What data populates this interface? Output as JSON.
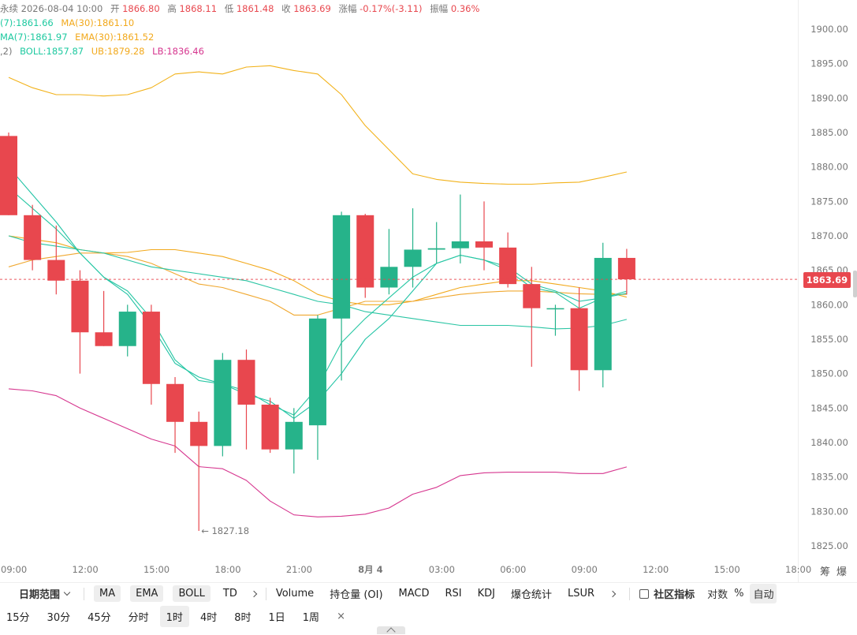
{
  "legend": {
    "row1": {
      "prefix": "永续",
      "datetime": "2026-08-04 10:00",
      "open_label": "开",
      "open": "1866.80",
      "high_label": "高",
      "high": "1868.11",
      "low_label": "低",
      "low": "1861.48",
      "close_label": "收",
      "close": "1863.69",
      "change_label": "涨幅",
      "change": "-0.17%(-3.11)",
      "amp_label": "振幅",
      "amp": "0.36%"
    },
    "row2": {
      "ma7": "(7):1861.66",
      "ma30": "MA(30):1861.10"
    },
    "row3": {
      "ema7": "MA(7):1861.97",
      "ema30": "EMA(30):1861.52"
    },
    "row4": {
      "prefix": ",2)",
      "boll": "BOLL:1857.87",
      "ub": "UB:1879.28",
      "lb": "LB:1836.46"
    }
  },
  "price_tag": "1863.69",
  "side_chips": [
    "筹",
    "爆"
  ],
  "toolbar1": {
    "date_range": "日期范围",
    "main_indicators": [
      "MA",
      "EMA",
      "BOLL"
    ],
    "td": "TD",
    "sub_indicators": [
      "Volume",
      "持仓量 (OI)",
      "MACD",
      "RSI",
      "KDJ",
      "爆仓统计",
      "LSUR"
    ],
    "community": "社区指标",
    "log": "对数",
    "pct": "%",
    "auto": "自动"
  },
  "toolbar2": {
    "timeframes": [
      "15分",
      "30分",
      "45分",
      "分时",
      "1时",
      "4时",
      "8时",
      "1日",
      "1周"
    ],
    "active": "1时",
    "close": "×"
  },
  "colors": {
    "up": "#26b38a",
    "down": "#e8474e",
    "ma7": "#21c3a5",
    "ma30": "#f2a91c",
    "ema7": "#27c7a3",
    "ema30": "#f0a830",
    "boll_mid": "#2bc5a4",
    "boll_ub": "#f2b21a",
    "boll_lb": "#d6368f"
  },
  "chart_data": {
    "type": "candlestick",
    "y_ticks": [
      1900,
      1895,
      1890,
      1885,
      1880,
      1875,
      1870,
      1865,
      1860,
      1855,
      1850,
      1845,
      1840,
      1835,
      1830,
      1825
    ],
    "x_ticks": [
      {
        "i": 0.22,
        "label": "09:00"
      },
      {
        "i": 3.22,
        "label": "12:00"
      },
      {
        "i": 6.22,
        "label": "15:00"
      },
      {
        "i": 9.22,
        "label": "18:00"
      },
      {
        "i": 12.22,
        "label": "21:00"
      },
      {
        "i": 15.22,
        "label": "8月 4"
      },
      {
        "i": 18.22,
        "label": "03:00"
      },
      {
        "i": 21.22,
        "label": "06:00"
      },
      {
        "i": 24.22,
        "label": "09:00"
      },
      {
        "i": 27.22,
        "label": "12:00"
      },
      {
        "i": 30.22,
        "label": "15:00"
      },
      {
        "i": 33.22,
        "label": "18:00"
      }
    ],
    "low_marker": "← 1827.18",
    "current_price": 1863.69,
    "candles": [
      {
        "o": 1884.5,
        "h": 1885.0,
        "l": 1873.0,
        "c": 1873.0
      },
      {
        "o": 1873.0,
        "h": 1874.5,
        "l": 1865.0,
        "c": 1866.5
      },
      {
        "o": 1866.5,
        "h": 1871.5,
        "l": 1861.5,
        "c": 1863.5
      },
      {
        "o": 1863.5,
        "h": 1865.0,
        "l": 1850.0,
        "c": 1856.0
      },
      {
        "o": 1856.0,
        "h": 1862.0,
        "l": 1854.0,
        "c": 1854.0
      },
      {
        "o": 1854.0,
        "h": 1860.0,
        "l": 1852.5,
        "c": 1859.0
      },
      {
        "o": 1859.0,
        "h": 1860.0,
        "l": 1845.5,
        "c": 1848.5
      },
      {
        "o": 1848.5,
        "h": 1849.5,
        "l": 1838.5,
        "c": 1843.0
      },
      {
        "o": 1843.0,
        "h": 1844.5,
        "l": 1827.18,
        "c": 1839.5
      },
      {
        "o": 1839.5,
        "h": 1853.0,
        "l": 1838.0,
        "c": 1852.0
      },
      {
        "o": 1852.0,
        "h": 1853.5,
        "l": 1839.0,
        "c": 1845.5
      },
      {
        "o": 1845.5,
        "h": 1846.5,
        "l": 1838.5,
        "c": 1839.0
      },
      {
        "o": 1839.0,
        "h": 1845.0,
        "l": 1835.5,
        "c": 1843.0
      },
      {
        "o": 1842.5,
        "h": 1858.5,
        "l": 1837.5,
        "c": 1858.0
      },
      {
        "o": 1858.0,
        "h": 1873.5,
        "l": 1849.0,
        "c": 1873.0
      },
      {
        "o": 1873.0,
        "h": 1873.2,
        "l": 1861.0,
        "c": 1862.5
      },
      {
        "o": 1862.5,
        "h": 1871.0,
        "l": 1861.5,
        "c": 1865.5
      },
      {
        "o": 1865.5,
        "h": 1874.0,
        "l": 1862.5,
        "c": 1868.0
      },
      {
        "o": 1868.0,
        "h": 1872.0,
        "l": 1866.0,
        "c": 1868.2
      },
      {
        "o": 1868.2,
        "h": 1876.0,
        "l": 1866.0,
        "c": 1869.2
      },
      {
        "o": 1869.2,
        "h": 1875.0,
        "l": 1865.0,
        "c": 1868.3
      },
      {
        "o": 1868.3,
        "h": 1870.5,
        "l": 1862.5,
        "c": 1863.0
      },
      {
        "o": 1863.0,
        "h": 1865.5,
        "l": 1851.0,
        "c": 1859.5
      },
      {
        "o": 1859.5,
        "h": 1860.0,
        "l": 1855.5,
        "c": 1859.5
      },
      {
        "o": 1859.5,
        "h": 1862.5,
        "l": 1847.5,
        "c": 1850.5
      },
      {
        "o": 1850.5,
        "h": 1869.0,
        "l": 1848.0,
        "c": 1866.8
      },
      {
        "o": 1866.8,
        "h": 1868.11,
        "l": 1861.48,
        "c": 1863.69
      }
    ],
    "series": [
      {
        "name": "MA(30)",
        "values": [
          1870,
          1869.5,
          1869,
          1868,
          1867.5,
          1867.6,
          1868,
          1868,
          1867.5,
          1867,
          1866,
          1865,
          1863.5,
          1861.5,
          1860.5,
          1860,
          1860,
          1860.5,
          1861.5,
          1862.5,
          1863,
          1863.5,
          1863.5,
          1863,
          1862.5,
          1862,
          1861.1
        ]
      },
      {
        "name": "EMA(30)",
        "values": [
          1865.5,
          1866.5,
          1867,
          1867.5,
          1867.5,
          1867,
          1866,
          1864.5,
          1863,
          1862.5,
          1861.5,
          1860.5,
          1858.5,
          1858.5,
          1859.5,
          1860.5,
          1860.5,
          1860.5,
          1861,
          1861.5,
          1861.8,
          1862,
          1862,
          1861.8,
          1861.6,
          1861.5,
          1861.5
        ]
      },
      {
        "name": "MA(7)",
        "values": [
          1880,
          1876,
          1872,
          1867.5,
          1864,
          1861.5,
          1857,
          1851.5,
          1849.5,
          1848.5,
          1847,
          1846,
          1843.5,
          1846,
          1850,
          1855,
          1858,
          1862,
          1866,
          1867.2,
          1866.5,
          1865.5,
          1863,
          1862,
          1860.5,
          1861,
          1861.66
        ]
      },
      {
        "name": "EMA(7)",
        "values": [
          1877,
          1874,
          1871,
          1867.5,
          1864,
          1862,
          1858,
          1852,
          1849,
          1848.5,
          1847.5,
          1845.5,
          1844,
          1848,
          1854.5,
          1858,
          1861,
          1864,
          1866,
          1867.2,
          1866.5,
          1865,
          1862.5,
          1861.8,
          1859.5,
          1861,
          1861.97
        ]
      },
      {
        "name": "BOLL",
        "values": [
          1870,
          1869,
          1868.5,
          1868,
          1867.5,
          1866.5,
          1865.5,
          1865,
          1864.5,
          1864,
          1863.5,
          1862.5,
          1861.5,
          1860.5,
          1860,
          1859,
          1858.5,
          1858,
          1857.5,
          1857,
          1857,
          1857,
          1856.8,
          1856.5,
          1856.6,
          1857,
          1857.87
        ]
      },
      {
        "name": "UB",
        "values": [
          1893,
          1891.5,
          1890.5,
          1890.5,
          1890.3,
          1890.5,
          1891.5,
          1893.5,
          1893.8,
          1893.5,
          1894.5,
          1894.7,
          1894,
          1893.5,
          1890.5,
          1886,
          1882.5,
          1879,
          1878.2,
          1877.8,
          1877.6,
          1877.5,
          1877.5,
          1877.7,
          1877.8,
          1878.5,
          1879.28
        ]
      },
      {
        "name": "LB",
        "values": [
          1847.8,
          1847.5,
          1846.8,
          1845,
          1843.5,
          1842,
          1840.5,
          1839.5,
          1836.5,
          1836.2,
          1834.5,
          1831.5,
          1829.5,
          1829.2,
          1829.3,
          1829.6,
          1830.5,
          1832.5,
          1833.5,
          1835.2,
          1835.6,
          1835.7,
          1835.7,
          1835.7,
          1835.5,
          1835.5,
          1836.46
        ]
      }
    ],
    "ylim": [
      1822.5,
      1902.5
    ]
  }
}
